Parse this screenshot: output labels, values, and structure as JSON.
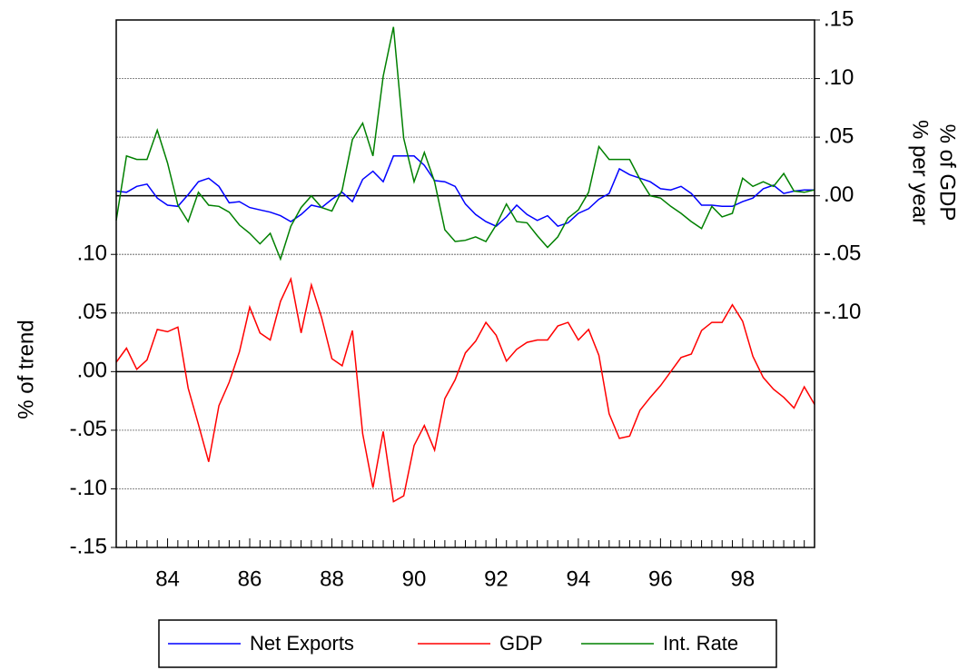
{
  "chart_data": {
    "type": "line",
    "ylabel": "% of trend",
    "y2label": [
      "% of GDP",
      "% per year"
    ],
    "categories": [
      null,
      null,
      null,
      null,
      null,
      "84",
      null,
      null,
      null,
      null,
      null,
      null,
      null,
      "86",
      null,
      null,
      null,
      null,
      null,
      null,
      null,
      "88",
      null,
      null,
      null,
      null,
      null,
      null,
      null,
      "90",
      null,
      null,
      null,
      null,
      null,
      null,
      null,
      "92",
      null,
      null,
      null,
      null,
      null,
      null,
      null,
      "94",
      null,
      null,
      null,
      null,
      null,
      null,
      null,
      "96",
      null,
      null,
      null,
      null,
      null,
      null,
      null,
      "98",
      null,
      null,
      null,
      null,
      null,
      null,
      null
    ],
    "ylim": [
      -0.15,
      0.3
    ],
    "yticks": [
      {
        "value": 0.1,
        "label": ".10"
      },
      {
        "value": 0.05,
        "label": ".05"
      },
      {
        "value": 0,
        "label": ".00"
      },
      {
        "value": -0.05,
        "label": "-.05"
      },
      {
        "value": -0.1,
        "label": "-.10"
      },
      {
        "value": -0.15,
        "label": "-.15"
      }
    ],
    "y2lim": [
      -0.3,
      0.15
    ],
    "y2ticks": [
      {
        "value": 0.15,
        "label": ".15"
      },
      {
        "value": 0.1,
        "label": ".10"
      },
      {
        "value": 0.05,
        "label": ".05"
      },
      {
        "value": 0,
        "label": ".00"
      },
      {
        "value": -0.05,
        "label": "-.05"
      },
      {
        "value": -0.1,
        "label": "-.10"
      }
    ],
    "grid": true,
    "legend": "bottom",
    "series": [
      {
        "name": "Net Exports",
        "color": "#0000ff",
        "axis": "y2",
        "values": [
          0.004,
          0.003,
          0.008,
          0.01,
          -0.002,
          -0.008,
          -0.009,
          0.001,
          0.012,
          0.015,
          0.008,
          -0.006,
          -0.005,
          -0.01,
          -0.012,
          -0.014,
          -0.017,
          -0.022,
          -0.016,
          -0.008,
          -0.01,
          -0.003,
          0.003,
          -0.005,
          0.014,
          0.021,
          0.012,
          0.034,
          0.034,
          0.034,
          0.026,
          0.013,
          0.012,
          0.008,
          -0.007,
          -0.016,
          -0.022,
          -0.026,
          -0.018,
          -0.008,
          -0.016,
          -0.021,
          -0.017,
          -0.026,
          -0.023,
          -0.015,
          -0.011,
          -0.003,
          0.002,
          0.023,
          0.018,
          0.015,
          0.012,
          0.006,
          0.005,
          0.008,
          0.002,
          -0.008,
          -0.008,
          -0.009,
          -0.009,
          -0.005,
          -0.002,
          0.006,
          0.009,
          0.002,
          0.004,
          0.005,
          0.005
        ]
      },
      {
        "name": "GDP",
        "color": "#ff0000",
        "values": [
          0.008,
          0.02,
          0.002,
          0.01,
          0.036,
          0.034,
          0.038,
          -0.014,
          -0.045,
          -0.077,
          -0.029,
          -0.009,
          0.017,
          0.055,
          0.033,
          0.027,
          0.06,
          0.079,
          0.033,
          0.074,
          0.046,
          0.011,
          0.005,
          0.035,
          -0.053,
          -0.099,
          -0.051,
          -0.111,
          -0.106,
          -0.063,
          -0.046,
          -0.067,
          -0.023,
          -0.007,
          0.016,
          0.026,
          0.042,
          0.031,
          0.009,
          0.019,
          0.025,
          0.027,
          0.027,
          0.039,
          0.042,
          0.027,
          0.036,
          0.014,
          -0.036,
          -0.057,
          -0.055,
          -0.033,
          -0.022,
          -0.012,
          0.0,
          0.012,
          0.015,
          0.035,
          0.042,
          0.042,
          0.057,
          0.043,
          0.013,
          -0.005,
          -0.015,
          -0.022,
          -0.031,
          -0.013,
          -0.028
        ]
      },
      {
        "name": "Int. Rate",
        "color": "#008000",
        "axis": "y2",
        "values": [
          -0.021,
          0.034,
          0.031,
          0.031,
          0.056,
          0.028,
          -0.008,
          -0.022,
          0.003,
          -0.008,
          -0.009,
          -0.014,
          -0.025,
          -0.032,
          -0.041,
          -0.032,
          -0.054,
          -0.026,
          -0.01,
          0.0,
          -0.01,
          -0.013,
          0.005,
          0.048,
          0.062,
          0.034,
          0.102,
          0.144,
          0.049,
          0.012,
          0.037,
          0.012,
          -0.029,
          -0.039,
          -0.038,
          -0.035,
          -0.039,
          -0.025,
          -0.007,
          -0.022,
          -0.023,
          -0.034,
          -0.044,
          -0.035,
          -0.019,
          -0.012,
          0.003,
          0.042,
          0.031,
          0.031,
          0.031,
          0.014,
          0.0,
          -0.002,
          -0.009,
          -0.015,
          -0.022,
          -0.028,
          -0.009,
          -0.018,
          -0.015,
          0.015,
          0.008,
          0.012,
          0.008,
          0.019,
          0.004,
          0.003,
          0.005
        ]
      }
    ]
  }
}
